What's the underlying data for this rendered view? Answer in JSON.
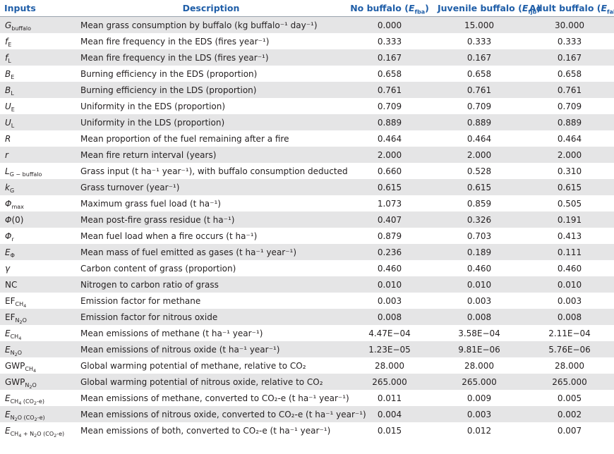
{
  "headers": {
    "inputs": "Inputs",
    "description": "Description",
    "no_buffalo": "No buffalo (",
    "no_buffalo_sym": "E",
    "no_buffalo_sub": "fba",
    "juvenile": "Juvenile buffalo (",
    "juvenile_sym": "E",
    "juvenile_sub": "fjb",
    "adult": "Adult buffalo (",
    "adult_sym": "E",
    "adult_sub": "fab",
    "close": ")"
  },
  "rows": [
    {
      "sym": "G",
      "sub": "buffalo",
      "desc": "Mean grass consumption by buffalo (kg buffalo⁻¹ day⁻¹)",
      "v1": "0.000",
      "v2": "15.000",
      "v3": "30.000"
    },
    {
      "sym": "f",
      "sub": "E",
      "desc": "Mean fire frequency in the EDS (fires year⁻¹)",
      "v1": "0.333",
      "v2": "0.333",
      "v3": "0.333"
    },
    {
      "sym": "f",
      "sub": "L",
      "desc": "Mean fire frequency in the LDS (fires year⁻¹)",
      "v1": "0.167",
      "v2": "0.167",
      "v3": "0.167"
    },
    {
      "sym": "B",
      "sub": "E",
      "desc": "Burning efficiency in the EDS (proportion)",
      "v1": "0.658",
      "v2": "0.658",
      "v3": "0.658"
    },
    {
      "sym": "B",
      "sub": "L",
      "desc": "Burning efficiency in the LDS (proportion)",
      "v1": "0.761",
      "v2": "0.761",
      "v3": "0.761"
    },
    {
      "sym": "U",
      "sub": "E",
      "desc": "Uniformity in the EDS (proportion)",
      "v1": "0.709",
      "v2": "0.709",
      "v3": "0.709"
    },
    {
      "sym": "U",
      "sub": "L",
      "desc": "Uniformity in the LDS (proportion)",
      "v1": "0.889",
      "v2": "0.889",
      "v3": "0.889"
    },
    {
      "sym": "R",
      "sub": "",
      "desc": "Mean proportion of the fuel remaining after a fire",
      "v1": "0.464",
      "v2": "0.464",
      "v3": "0.464"
    },
    {
      "sym": "r",
      "sub": "",
      "desc": "Mean fire return interval (years)",
      "v1": "2.000",
      "v2": "2.000",
      "v3": "2.000"
    },
    {
      "sym": "L",
      "sub": "G − buffalo",
      "desc": "Grass input (t ha⁻¹ year⁻¹), with buffalo consumption deducted",
      "v1": "0.660",
      "v2": "0.528",
      "v3": "0.310"
    },
    {
      "sym": "k",
      "sub": "G",
      "desc": "Grass turnover (year⁻¹)",
      "v1": "0.615",
      "v2": "0.615",
      "v3": "0.615"
    },
    {
      "sym": "Φ",
      "sub": "max",
      "desc": "Maximum grass fuel load (t ha⁻¹)",
      "v1": "1.073",
      "v2": "0.859",
      "v3": "0.505"
    },
    {
      "sym": "Φ",
      "sub": "",
      "extra": "(0)",
      "desc": "Mean post-fire grass residue (t ha⁻¹)",
      "v1": "0.407",
      "v2": "0.326",
      "v3": "0.191"
    },
    {
      "sym": "Φ",
      "sub": "r",
      "desc": "Mean fuel load when a fire occurs (t ha⁻¹)",
      "v1": "0.879",
      "v2": "0.703",
      "v3": "0.413"
    },
    {
      "sym": "E",
      "sub": "Φ",
      "desc": "Mean mass of fuel emitted as gases (t ha⁻¹ year⁻¹)",
      "v1": "0.236",
      "v2": "0.189",
      "v3": "0.111"
    },
    {
      "sym": "γ",
      "sub": "",
      "desc": "Carbon content of grass (proportion)",
      "v1": "0.460",
      "v2": "0.460",
      "v3": "0.460"
    },
    {
      "sym": "",
      "plain": "NC",
      "sub": "",
      "desc": "Nitrogen to carbon ratio of grass",
      "v1": "0.010",
      "v2": "0.010",
      "v3": "0.010"
    },
    {
      "sym": "",
      "plain": "EF",
      "sub": "CH",
      "sub2": "4",
      "desc": "Emission factor for methane",
      "v1": "0.003",
      "v2": "0.003",
      "v3": "0.003"
    },
    {
      "sym": "",
      "plain": "EF",
      "sub": "N",
      "sub2": "2",
      "sub3": "O",
      "desc": "Emission factor for nitrous oxide",
      "v1": "0.008",
      "v2": "0.008",
      "v3": "0.008"
    },
    {
      "sym": "E",
      "sub": "CH",
      "sub2": "4",
      "desc": "Mean emissions of methane (t ha⁻¹ year⁻¹)",
      "v1": "4.47E−04",
      "v2": "3.58E−04",
      "v3": "2.11E−04"
    },
    {
      "sym": "E",
      "sub": "N",
      "sub2": "2",
      "sub3": "O",
      "desc": "Mean emissions of nitrous oxide (t ha⁻¹ year⁻¹)",
      "v1": "1.23E−05",
      "v2": "9.81E−06",
      "v3": "5.76E−06"
    },
    {
      "sym": "",
      "plain": "GWP",
      "sub": "CH",
      "sub2": "4",
      "desc": "Global warming potential of methane, relative to CO₂",
      "v1": "28.000",
      "v2": "28.000",
      "v3": "28.000"
    },
    {
      "sym": "",
      "plain": "GWP",
      "sub": "N",
      "sub2": "2",
      "sub3": "O",
      "desc": "Global warming potential of nitrous oxide, relative to CO₂",
      "v1": "265.000",
      "v2": "265.000",
      "v3": "265.000"
    },
    {
      "sym": "E",
      "sub": "CH",
      "sub2": "4",
      "sub3": " (CO",
      "sub4": "2",
      "sub5": "-e)",
      "desc": "Mean emissions of methane, converted to CO₂-e (t ha⁻¹ year⁻¹)",
      "v1": "0.011",
      "v2": "0.009",
      "v3": "0.005"
    },
    {
      "sym": "E",
      "sub": "N",
      "sub2": "2",
      "sub3": "O  (CO",
      "sub4": "2",
      "sub5": "-e)",
      "desc": "Mean emissions of nitrous oxide, converted to CO₂-e (t ha⁻¹ year⁻¹)",
      "v1": "0.004",
      "v2": "0.003",
      "v3": "0.002"
    },
    {
      "sym": "E",
      "sub": "CH",
      "sub2": "4",
      "sub3": " + N",
      "sub4": "2",
      "sub5": "O  (CO",
      "sub6": "2",
      "sub7": "-e)",
      "desc": "Mean emissions of both, converted to CO₂-e (t ha⁻¹ year⁻¹)",
      "v1": "0.015",
      "v2": "0.012",
      "v3": "0.007"
    }
  ]
}
